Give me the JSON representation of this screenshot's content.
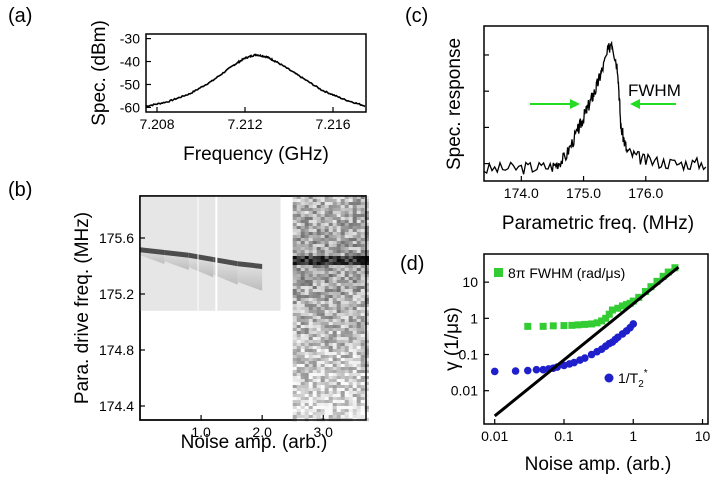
{
  "panels": {
    "a": {
      "tag": "(a)"
    },
    "b": {
      "tag": "(b)"
    },
    "c": {
      "tag": "(c)"
    },
    "d": {
      "tag": "(d)"
    }
  },
  "chart_data": [
    {
      "panel": "a",
      "type": "line",
      "xlabel": "Frequency (GHz)",
      "ylabel": "Spec. (dBm)",
      "xlim": [
        7.2075,
        7.2175
      ],
      "ylim": [
        -62,
        -28
      ],
      "xticks": [
        7.208,
        7.212,
        7.216
      ],
      "xtick_labels": [
        "7.208",
        "7.212",
        "7.216"
      ],
      "yticks": [
        -30,
        -40,
        -50,
        -60
      ],
      "ytick_labels": [
        "-30",
        "-40",
        "-50",
        "-60"
      ],
      "series": [
        {
          "x": [
            7.2075,
            7.2085,
            7.2095,
            7.2105,
            7.2115,
            7.212,
            7.2125,
            7.213,
            7.2135,
            7.2145,
            7.2155,
            7.2165,
            7.2175
          ],
          "y": [
            -59.5,
            -57.5,
            -54.0,
            -48.5,
            -41.5,
            -38.5,
            -37.0,
            -38.0,
            -40.5,
            -46.5,
            -52.5,
            -56.5,
            -59.5
          ]
        }
      ],
      "color": "#000000",
      "grid": false
    },
    {
      "panel": "b",
      "type": "heatmap",
      "xlabel": "Noise amp. (arb.)",
      "ylabel": "Para. drive freq. (MHz)",
      "xlim": [
        0,
        3.7
      ],
      "ylim": [
        174.3,
        175.9
      ],
      "xticks": [
        1.0,
        2.0,
        3.0
      ],
      "xtick_labels": [
        "1.0",
        "2.0",
        "3.0"
      ],
      "yticks": [
        175.6,
        175.2,
        174.8,
        174.4
      ],
      "ytick_labels": [
        "175.6",
        "175.2",
        "174.8",
        "174.4"
      ],
      "resonance_center_mhz": [
        [
          0.0,
          175.52
        ],
        [
          0.4,
          175.5
        ],
        [
          0.8,
          175.48
        ],
        [
          1.2,
          175.45
        ],
        [
          1.6,
          175.42
        ],
        [
          2.0,
          175.4
        ],
        [
          2.4,
          175.4
        ],
        [
          3.0,
          175.45
        ],
        [
          3.6,
          175.45
        ]
      ],
      "colormap": "grayscale",
      "grid": false
    },
    {
      "panel": "c",
      "type": "line",
      "xlabel": "Parametric freq. (MHz)",
      "ylabel": "Spec. response",
      "xlim": [
        173.4,
        177.0
      ],
      "xticks": [
        174.0,
        175.0,
        176.0
      ],
      "xtick_labels": [
        "174.0",
        "175.0",
        "176.0"
      ],
      "annotations": [
        {
          "text": "FWHM",
          "color": "#22dd22"
        }
      ],
      "series": [
        {
          "x": [
            173.4,
            174.0,
            174.5,
            174.7,
            174.9,
            175.0,
            175.1,
            175.2,
            175.3,
            175.45,
            175.55,
            175.6,
            175.7,
            176.0,
            176.5,
            177.0
          ],
          "y": [
            0.06,
            0.07,
            0.08,
            0.14,
            0.32,
            0.42,
            0.52,
            0.62,
            0.75,
            0.95,
            0.75,
            0.35,
            0.18,
            0.12,
            0.1,
            0.1
          ]
        }
      ],
      "color": "#000000",
      "grid": false
    },
    {
      "panel": "d",
      "type": "scatter",
      "xlabel": "Noise amp. (arb.)",
      "ylabel": "γ (1/μs)",
      "xscale": "log",
      "yscale": "log",
      "xlim": [
        0.007,
        12
      ],
      "ylim": [
        0.0012,
        60
      ],
      "xticks": [
        0.01,
        0.1,
        1,
        10
      ],
      "xtick_labels": [
        "0.01",
        "0.1",
        "1",
        "10"
      ],
      "yticks": [
        10,
        1,
        0.1,
        0.01
      ],
      "ytick_labels": [
        "10",
        "1",
        "0.1",
        "0.01"
      ],
      "legend": "top-left",
      "series": [
        {
          "name": "8π FWHM (rad/μs)",
          "color": "#33cc33",
          "marker": "square",
          "x": [
            0.03,
            0.05,
            0.07,
            0.1,
            0.13,
            0.16,
            0.2,
            0.25,
            0.3,
            0.35,
            0.4,
            0.45,
            0.5,
            0.6,
            0.7,
            0.8,
            0.9,
            1.0,
            1.2,
            1.5,
            1.8,
            2.2,
            2.7,
            3.2,
            4.0
          ],
          "y": [
            0.6,
            0.6,
            0.62,
            0.63,
            0.64,
            0.66,
            0.68,
            0.7,
            0.75,
            0.85,
            1.0,
            1.3,
            1.7,
            1.9,
            2.2,
            2.4,
            2.6,
            3.0,
            3.8,
            5.5,
            7.5,
            10.5,
            14.5,
            19.0,
            25.0
          ]
        },
        {
          "name": "1/T2*",
          "color": "#1f1fcc",
          "marker": "circle",
          "x": [
            0.01,
            0.02,
            0.03,
            0.04,
            0.05,
            0.06,
            0.07,
            0.08,
            0.1,
            0.12,
            0.14,
            0.17,
            0.2,
            0.25,
            0.3,
            0.35,
            0.4,
            0.45,
            0.5,
            0.55,
            0.6,
            0.7,
            0.8,
            0.9,
            1.0
          ],
          "y": [
            0.034,
            0.035,
            0.036,
            0.038,
            0.038,
            0.04,
            0.042,
            0.045,
            0.05,
            0.055,
            0.06,
            0.07,
            0.08,
            0.1,
            0.12,
            0.14,
            0.17,
            0.2,
            0.22,
            0.26,
            0.3,
            0.37,
            0.45,
            0.55,
            0.7
          ]
        },
        {
          "name": "",
          "color": "#000000",
          "marker": "line",
          "x": [
            0.01,
            4.5
          ],
          "y": [
            0.002,
            26
          ]
        }
      ],
      "legend_labels": {
        "green": "8π FWHM (rad/μs)",
        "blue_main": "1/T",
        "blue_sub": "2",
        "blue_sup": "*"
      },
      "grid": false
    }
  ]
}
